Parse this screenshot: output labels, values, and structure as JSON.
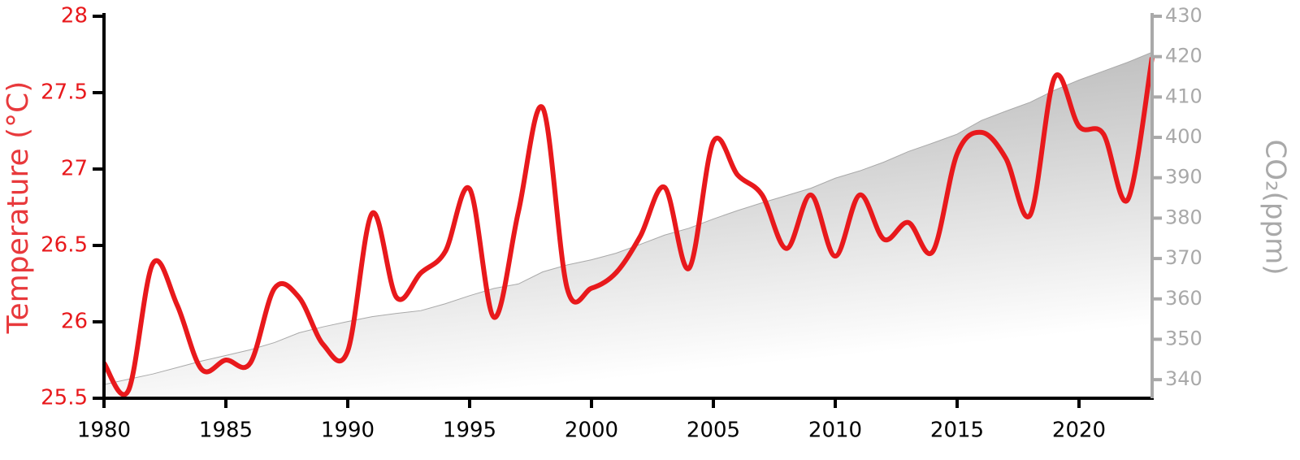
{
  "chart_data": {
    "type": "line",
    "y_label": "Temperature (°C)",
    "y2_label": "CO₂(ppm)",
    "x": [
      1980,
      1981,
      1982,
      1983,
      1984,
      1985,
      1986,
      1987,
      1988,
      1989,
      1990,
      1991,
      1992,
      1993,
      1994,
      1995,
      1996,
      1997,
      1998,
      1999,
      2000,
      2001,
      2002,
      2003,
      2004,
      2005,
      2006,
      2007,
      2008,
      2009,
      2010,
      2011,
      2012,
      2013,
      2014,
      2015,
      2016,
      2017,
      2018,
      2019,
      2020,
      2021,
      2022,
      2023
    ],
    "series": [
      {
        "type": "line",
        "color": "#e8191c",
        "axis": "y",
        "values": [
          25.73,
          25.55,
          26.38,
          26.11,
          25.69,
          25.75,
          25.73,
          26.22,
          26.16,
          25.85,
          25.81,
          26.71,
          26.16,
          26.32,
          26.46,
          26.87,
          26.03,
          26.72,
          27.4,
          26.22,
          26.22,
          26.32,
          26.56,
          26.88,
          26.35,
          27.18,
          26.96,
          26.83,
          26.48,
          26.83,
          26.43,
          26.83,
          26.54,
          26.65,
          26.46,
          27.1,
          27.24,
          27.07,
          26.7,
          27.6,
          27.28,
          27.23,
          26.8,
          27.73
        ]
      },
      {
        "type": "area",
        "color": "#a9a9a9",
        "axis": "y2",
        "values": [
          338.8,
          340.1,
          341.4,
          343.0,
          344.6,
          346.0,
          347.4,
          349.2,
          351.6,
          353.1,
          354.4,
          355.6,
          356.4,
          357.1,
          358.8,
          360.8,
          362.6,
          363.7,
          366.7,
          368.4,
          369.7,
          371.3,
          373.5,
          375.8,
          377.5,
          379.8,
          381.9,
          383.8,
          385.6,
          387.4,
          389.9,
          391.7,
          393.9,
          396.5,
          398.6,
          400.8,
          404.2,
          406.5,
          408.7,
          411.7,
          414.2,
          416.4,
          418.6,
          421.1
        ]
      }
    ],
    "xlim": [
      1980,
      2023
    ],
    "xticks": [
      1980,
      1985,
      1990,
      1995,
      2000,
      2005,
      2010,
      2015,
      2020
    ],
    "ylim": [
      25.5,
      28
    ],
    "yticks": [
      25.5,
      26,
      26.5,
      27,
      27.5,
      28
    ],
    "y2lim": [
      335.4,
      430
    ],
    "y2ticks": [
      340,
      350,
      360,
      370,
      380,
      390,
      400,
      410,
      420,
      430
    ],
    "grid": false
  }
}
